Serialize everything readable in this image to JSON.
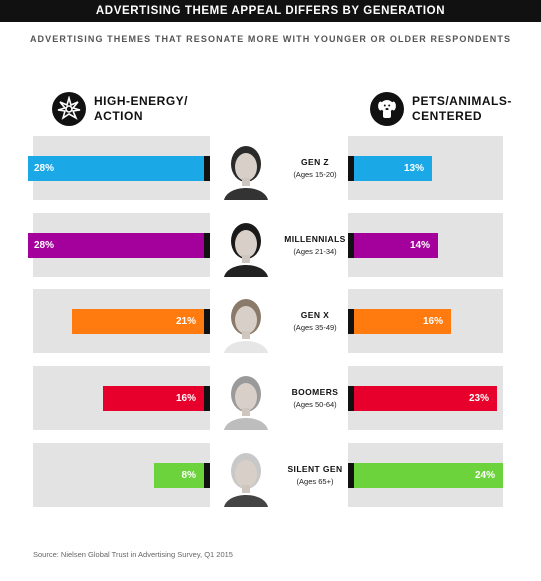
{
  "title": "ADVERTISING THEME APPEAL DIFFERS BY GENERATION",
  "subtitle": "ADVERTISING THEMES THAT RESONATE MORE WITH YOUNGER OR OLDER RESPONDENTS",
  "left_header": {
    "line1": "HIGH-ENERGY/",
    "line2": "ACTION",
    "icon": "starburst-icon"
  },
  "right_header": {
    "line1": "PETS/ANIMALS-",
    "line2": "CENTERED",
    "icon": "dog-icon"
  },
  "source": "Source: Nielsen Global Trust in Advertising Survey, Q1 2015",
  "chart_data": {
    "type": "bar",
    "categories": [
      "GEN Z",
      "MILLENNIALS",
      "GEN X",
      "BOOMERS",
      "SILENT GEN"
    ],
    "age_ranges": [
      "(Ages 15-20)",
      "(Ages 21-34)",
      "(Ages 35-49)",
      "(Ages 50-64)",
      "(Ages 65+)"
    ],
    "series": [
      {
        "name": "HIGH-ENERGY/ACTION",
        "values": [
          28,
          28,
          21,
          16,
          8
        ]
      },
      {
        "name": "PETS/ANIMALS-CENTERED",
        "values": [
          13,
          14,
          16,
          23,
          24
        ]
      }
    ],
    "value_labels_left": [
      "28%",
      "28%",
      "21%",
      "16%",
      "8%"
    ],
    "value_labels_right": [
      "13%",
      "14%",
      "16%",
      "23%",
      "24%"
    ],
    "colors": [
      "#1aa9e6",
      "#a3009c",
      "#ff7b0f",
      "#e8002c",
      "#6cd33c"
    ],
    "xlim": [
      0,
      28
    ]
  }
}
